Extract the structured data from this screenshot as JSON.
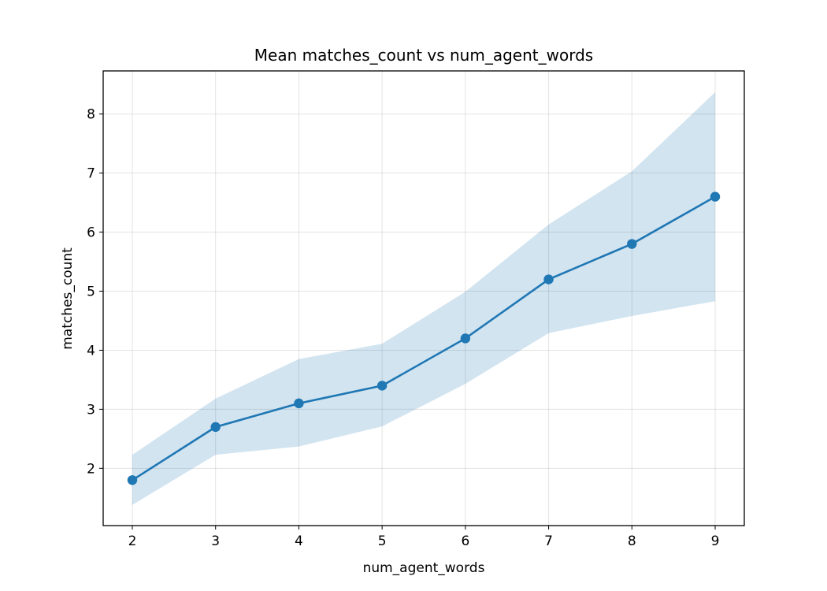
{
  "chart_data": {
    "type": "line",
    "title": "Mean matches_count vs num_agent_words",
    "xlabel": "num_agent_words",
    "ylabel": "matches_count",
    "x": [
      2,
      3,
      4,
      5,
      6,
      7,
      8,
      9
    ],
    "series": [
      {
        "values": [
          1.8,
          2.7,
          3.1,
          3.4,
          4.2,
          5.2,
          5.8,
          6.6
        ],
        "band_lower": [
          1.38,
          2.23,
          2.37,
          2.71,
          3.43,
          4.29,
          4.58,
          4.83
        ],
        "band_upper": [
          2.23,
          3.18,
          3.85,
          4.11,
          4.99,
          6.13,
          7.03,
          8.37
        ],
        "color": "#1f77b4"
      }
    ],
    "band_color": "#1f77b4",
    "xlim": [
      1.65,
      9.35
    ],
    "ylim": [
      1.03,
      8.73
    ],
    "xticks": [
      2,
      3,
      4,
      5,
      6,
      7,
      8,
      9
    ],
    "yticks": [
      2,
      3,
      4,
      5,
      6,
      7,
      8
    ],
    "grid": true,
    "marker": "circle"
  }
}
